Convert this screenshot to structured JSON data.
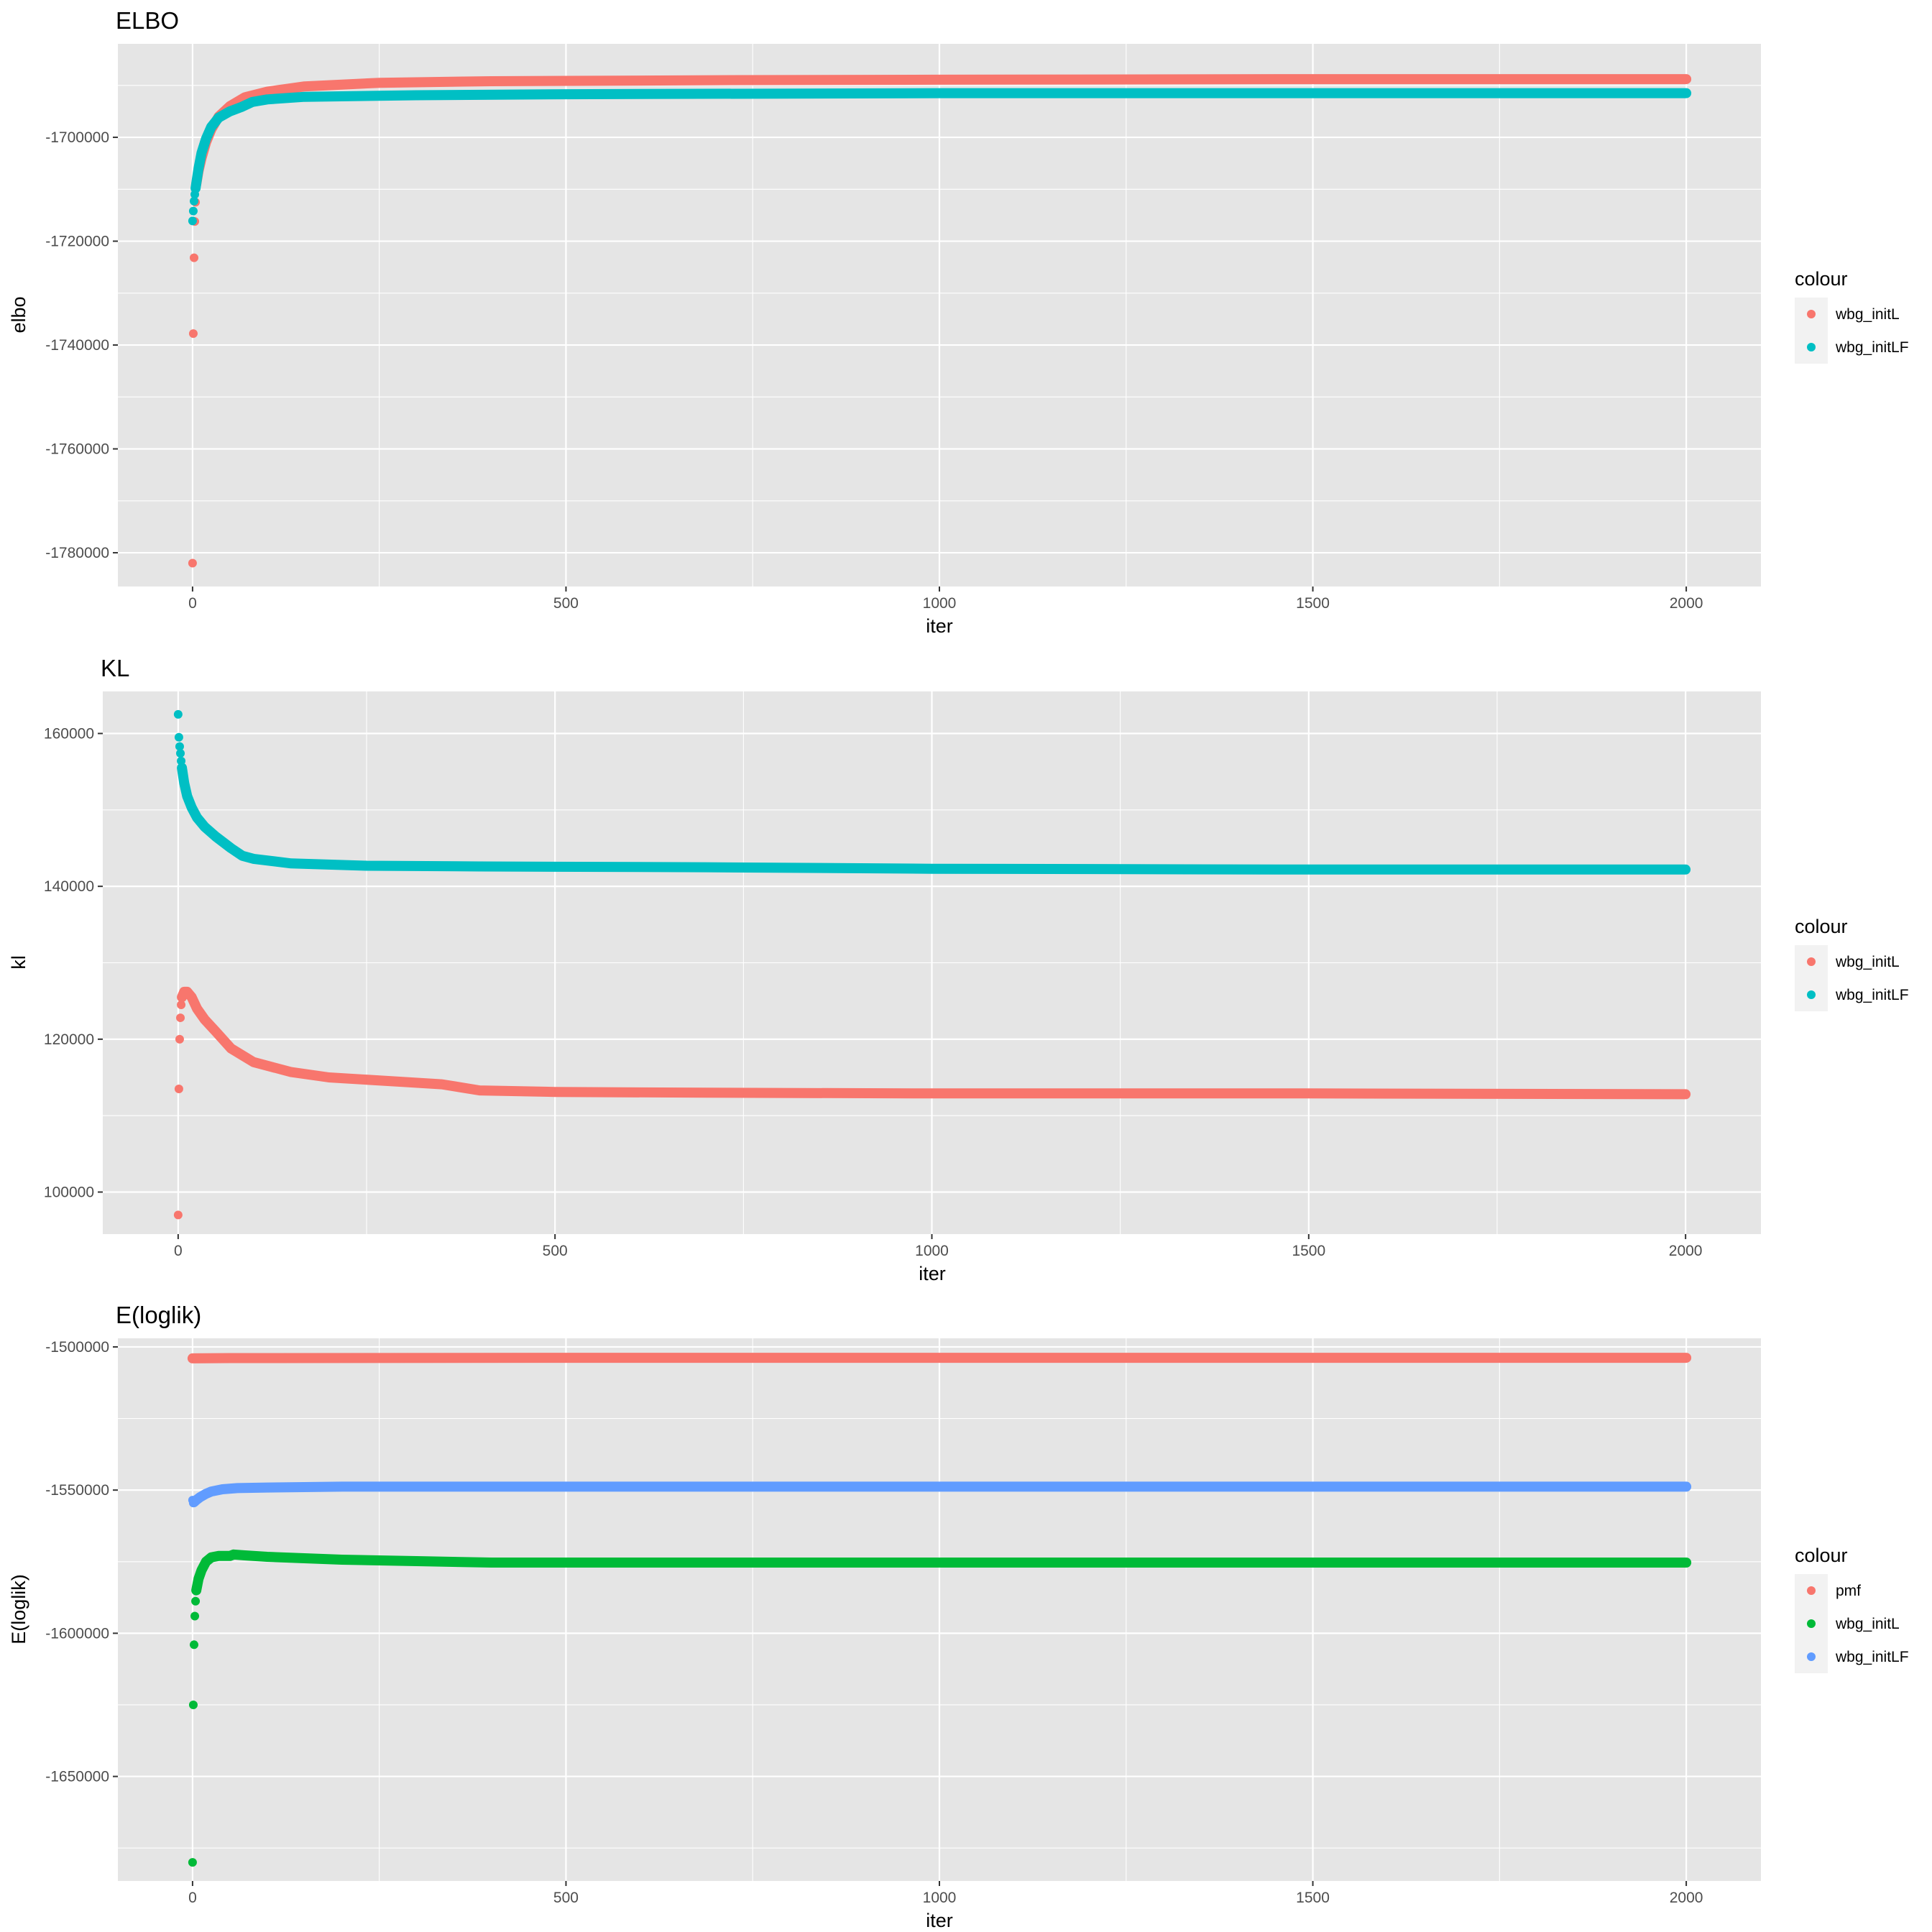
{
  "figure": {
    "background": "#ffffff",
    "panel_background": "#e5e5e5",
    "grid_color": "#ffffff"
  },
  "chart_data": [
    {
      "type": "scatter",
      "title": "ELBO",
      "xlabel": "iter",
      "ylabel": "elbo",
      "xlim": [
        -100,
        2100
      ],
      "ylim": [
        -1786500,
        -1682000
      ],
      "x_ticks": [
        0,
        500,
        1000,
        1500,
        2000
      ],
      "x_tick_labels": [
        "0",
        "500",
        "1000",
        "1500",
        "2000"
      ],
      "y_ticks": [
        -1780000,
        -1760000,
        -1740000,
        -1720000,
        -1700000
      ],
      "y_tick_labels": [
        "-1780000",
        "-1760000",
        "-1740000",
        "-1720000",
        "-1700000"
      ],
      "grid": true,
      "legend": {
        "title": "colour",
        "position": "right",
        "entries": [
          "wbg_initL",
          "wbg_initLF"
        ]
      },
      "series": [
        {
          "name": "wbg_initL",
          "color": "#f8766d",
          "scatter": [
            [
              0,
              -1782000
            ],
            [
              1,
              -1737800
            ],
            [
              2,
              -1723200
            ],
            [
              3,
              -1716200
            ],
            [
              4,
              -1712500
            ],
            [
              5,
              -1709000
            ]
          ],
          "curve": [
            [
              5,
              -1709000
            ],
            [
              8,
              -1706500
            ],
            [
              12,
              -1704000
            ],
            [
              18,
              -1701000
            ],
            [
              25,
              -1698500
            ],
            [
              35,
              -1696000
            ],
            [
              50,
              -1694000
            ],
            [
              70,
              -1692300
            ],
            [
              100,
              -1691200
            ],
            [
              150,
              -1690200
            ],
            [
              250,
              -1689500
            ],
            [
              400,
              -1689200
            ],
            [
              700,
              -1689000
            ],
            [
              1000,
              -1688900
            ],
            [
              1500,
              -1688800
            ],
            [
              2000,
              -1688800
            ]
          ]
        },
        {
          "name": "wbg_initLF",
          "color": "#00bfc4",
          "scatter": [
            [
              0,
              -1716100
            ],
            [
              1,
              -1714200
            ],
            [
              2,
              -1712300
            ],
            [
              3,
              -1711000
            ],
            [
              4,
              -1709800
            ]
          ],
          "curve": [
            [
              4,
              -1709800
            ],
            [
              8,
              -1706000
            ],
            [
              12,
              -1703000
            ],
            [
              18,
              -1700300
            ],
            [
              25,
              -1698000
            ],
            [
              35,
              -1696200
            ],
            [
              50,
              -1695000
            ],
            [
              65,
              -1694200
            ],
            [
              80,
              -1693200
            ],
            [
              100,
              -1692700
            ],
            [
              150,
              -1692200
            ],
            [
              300,
              -1691900
            ],
            [
              500,
              -1691700
            ],
            [
              1000,
              -1691500
            ],
            [
              1500,
              -1691500
            ],
            [
              2000,
              -1691500
            ]
          ]
        }
      ]
    },
    {
      "type": "scatter",
      "title": "KL",
      "xlabel": "iter",
      "ylabel": "kl",
      "xlim": [
        -100,
        2100
      ],
      "ylim": [
        94500,
        165500
      ],
      "x_ticks": [
        0,
        500,
        1000,
        1500,
        2000
      ],
      "x_tick_labels": [
        "0",
        "500",
        "1000",
        "1500",
        "2000"
      ],
      "y_ticks": [
        100000,
        120000,
        140000,
        160000
      ],
      "y_tick_labels": [
        "100000",
        "120000",
        "140000",
        "160000"
      ],
      "grid": true,
      "legend": {
        "title": "colour",
        "position": "right",
        "entries": [
          "wbg_initL",
          "wbg_initLF"
        ]
      },
      "series": [
        {
          "name": "wbg_initL",
          "color": "#f8766d",
          "scatter": [
            [
              0,
              97000
            ],
            [
              1,
              113500
            ],
            [
              2,
              120000
            ],
            [
              3,
              122800
            ],
            [
              4,
              124500
            ]
          ],
          "curve": [
            [
              5,
              125500
            ],
            [
              8,
              126200
            ],
            [
              12,
              126200
            ],
            [
              18,
              125500
            ],
            [
              25,
              124000
            ],
            [
              35,
              122600
            ],
            [
              50,
              121000
            ],
            [
              70,
              118800
            ],
            [
              100,
              117000
            ],
            [
              150,
              115700
            ],
            [
              200,
              115000
            ],
            [
              300,
              114400
            ],
            [
              350,
              114100
            ],
            [
              400,
              113300
            ],
            [
              500,
              113100
            ],
            [
              700,
              113000
            ],
            [
              1000,
              112900
            ],
            [
              1500,
              112900
            ],
            [
              2000,
              112800
            ]
          ]
        },
        {
          "name": "wbg_initLF",
          "color": "#00bfc4",
          "scatter": [
            [
              0,
              162500
            ],
            [
              1,
              159500
            ],
            [
              2,
              158300
            ],
            [
              3,
              157400
            ],
            [
              4,
              156400
            ],
            [
              5,
              155500
            ]
          ],
          "curve": [
            [
              5,
              155500
            ],
            [
              8,
              153500
            ],
            [
              12,
              151800
            ],
            [
              18,
              150300
            ],
            [
              25,
              149000
            ],
            [
              35,
              147800
            ],
            [
              50,
              146500
            ],
            [
              70,
              145000
            ],
            [
              85,
              144000
            ],
            [
              100,
              143600
            ],
            [
              150,
              143000
            ],
            [
              250,
              142700
            ],
            [
              400,
              142600
            ],
            [
              700,
              142500
            ],
            [
              1000,
              142300
            ],
            [
              1500,
              142200
            ],
            [
              2000,
              142200
            ]
          ]
        }
      ]
    },
    {
      "type": "scatter",
      "title": "E(loglik)",
      "xlabel": "iter",
      "ylabel": "E(loglik)",
      "xlim": [
        -100,
        2100
      ],
      "ylim": [
        -1686500,
        -1497000
      ],
      "x_ticks": [
        0,
        500,
        1000,
        1500,
        2000
      ],
      "x_tick_labels": [
        "0",
        "500",
        "1000",
        "1500",
        "2000"
      ],
      "y_ticks": [
        -1650000,
        -1600000,
        -1550000,
        -1500000
      ],
      "y_tick_labels": [
        "-1650000",
        "-1600000",
        "-1550000",
        "-1500000"
      ],
      "grid": true,
      "legend": {
        "title": "colour",
        "position": "right",
        "entries": [
          "pmf",
          "wbg_initL",
          "wbg_initLF"
        ]
      },
      "series": [
        {
          "name": "pmf",
          "color": "#f8766d",
          "scatter": [
            [
              0,
              -1504000
            ]
          ],
          "curve": [
            [
              0,
              -1504000
            ],
            [
              50,
              -1503900
            ],
            [
              500,
              -1503800
            ],
            [
              1000,
              -1503800
            ],
            [
              2000,
              -1503800
            ]
          ]
        },
        {
          "name": "wbg_initL",
          "color": "#00ba38",
          "scatter": [
            [
              0,
              -1680000
            ],
            [
              1,
              -1625000
            ],
            [
              2,
              -1604000
            ],
            [
              3,
              -1594000
            ],
            [
              4,
              -1588800
            ],
            [
              5,
              -1585000
            ]
          ],
          "curve": [
            [
              5,
              -1585000
            ],
            [
              8,
              -1581000
            ],
            [
              12,
              -1578000
            ],
            [
              18,
              -1575000
            ],
            [
              25,
              -1573500
            ],
            [
              35,
              -1573000
            ],
            [
              50,
              -1573000
            ],
            [
              55,
              -1572500
            ],
            [
              70,
              -1572800
            ],
            [
              100,
              -1573300
            ],
            [
              200,
              -1574300
            ],
            [
              300,
              -1574800
            ],
            [
              400,
              -1575300
            ],
            [
              700,
              -1575300
            ],
            [
              1000,
              -1575300
            ],
            [
              2000,
              -1575300
            ]
          ]
        },
        {
          "name": "wbg_initLF",
          "color": "#619cff",
          "scatter": [
            [
              0,
              -1553500
            ],
            [
              1,
              -1554500
            ],
            [
              2,
              -1554200
            ]
          ],
          "curve": [
            [
              2,
              -1554200
            ],
            [
              5,
              -1553500
            ],
            [
              10,
              -1552500
            ],
            [
              18,
              -1551300
            ],
            [
              25,
              -1550500
            ],
            [
              40,
              -1549700
            ],
            [
              60,
              -1549300
            ],
            [
              100,
              -1549100
            ],
            [
              200,
              -1548800
            ],
            [
              500,
              -1548800
            ],
            [
              1000,
              -1548800
            ],
            [
              2000,
              -1548800
            ]
          ]
        }
      ]
    }
  ]
}
